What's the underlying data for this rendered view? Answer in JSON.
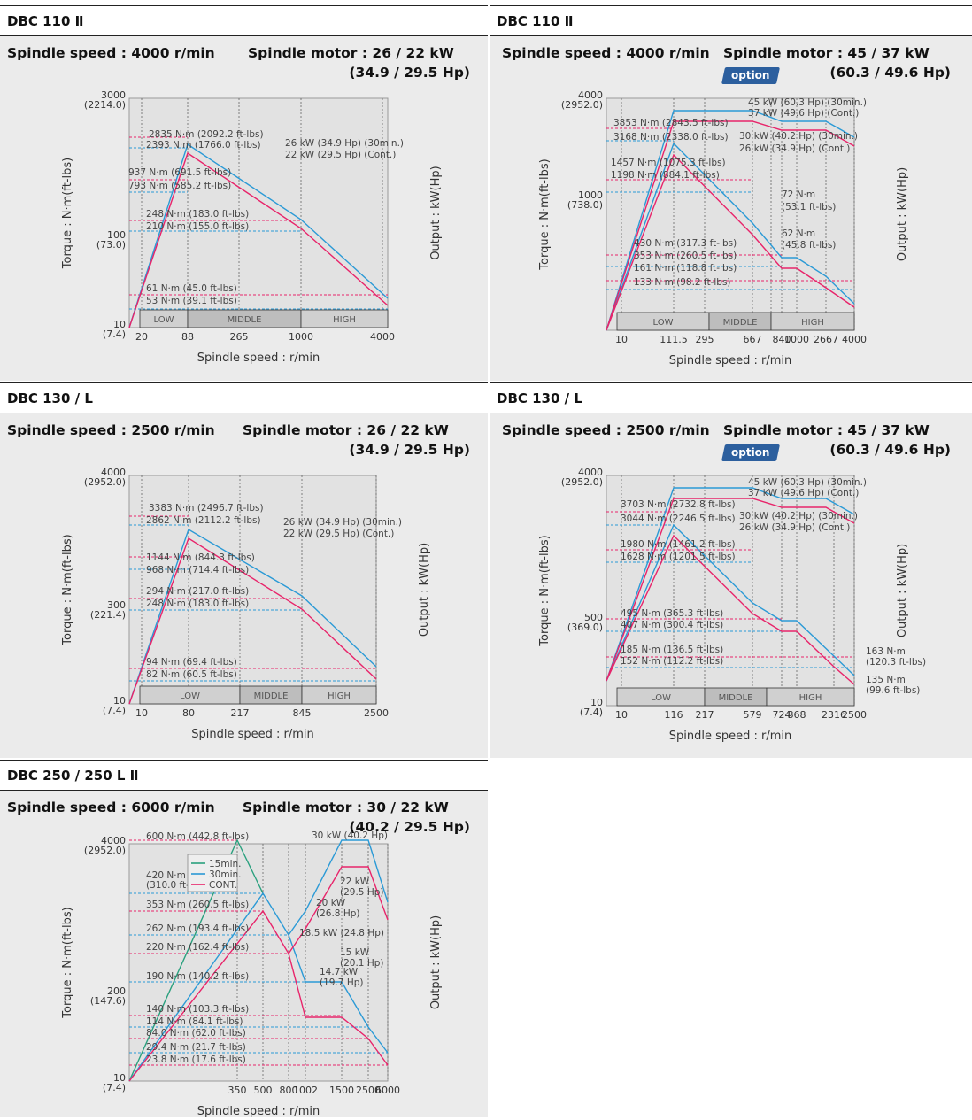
{
  "panels": [
    {
      "title": "DBC 110 Ⅱ",
      "spec_speed": "Spindle speed : 4000 r/min",
      "spec_motor": "Spindle motor : 26 / 22 kW",
      "spec_hp": "(34.9 / 29.5 Hp)",
      "option": ""
    },
    {
      "title": "DBC 110 Ⅱ",
      "spec_speed": "Spindle speed : 4000 r/min",
      "spec_motor": "Spindle motor : 45 / 37 kW",
      "spec_hp": "(60.3 / 49.6 Hp)",
      "option": "option"
    },
    {
      "title": "DBC 130 / L",
      "spec_speed": "Spindle speed : 2500 r/min",
      "spec_motor": "Spindle motor : 26 / 22 kW",
      "spec_hp": "(34.9 / 29.5 Hp)",
      "option": ""
    },
    {
      "title": "DBC 130 / L",
      "spec_speed": "Spindle speed : 2500 r/min",
      "spec_motor": "Spindle motor : 45 / 37 kW",
      "spec_hp": "(60.3 / 49.6 Hp)",
      "option": "option"
    },
    {
      "title": "DBC 250 / 250 L Ⅱ",
      "spec_speed": "Spindle speed : 6000 r/min",
      "spec_motor": "Spindle motor : 30 / 22 kW",
      "spec_hp": "(40.2 / 29.5 Hp)",
      "option": ""
    }
  ],
  "colors": {
    "cont": "#e8246a",
    "short": "#2b9ad6",
    "fifteen": "#2aa07e",
    "bg": "#ebebeb"
  },
  "chart_data": [
    {
      "type": "line",
      "xlabel": "Spindle speed : r/min",
      "ylabel": "Torque : N·m(ft-lbs)",
      "y2label": "Output : kW(Hp)",
      "x_ticks": [
        "20",
        "88",
        "265",
        "1000",
        "4000"
      ],
      "y_ticks": [
        "3000\n(2214.0)",
        "100\n(73.0)",
        "10\n(7.4)"
      ],
      "bands": [
        "LOW",
        "MIDDLE",
        "HIGH"
      ],
      "series": [
        {
          "name": "26 kW (34.9 Hp) (30min.)",
          "x": [
            10,
            88,
            1000,
            4000
          ],
          "y": [
            10,
            2835,
            248,
            61
          ]
        },
        {
          "name": "22 kW (29.5 Hp) (Cont.)",
          "x": [
            10,
            88,
            1000,
            4000
          ],
          "y": [
            10,
            2393,
            210,
            53
          ]
        }
      ],
      "annotations": [
        "2835 N·m (2092.2 ft-lbs)",
        "2393 N·m (1766.0 ft-lbs)",
        "937 N·m (691.5 ft-lbs)",
        "793 N·m (585.2 ft-lbs)",
        "248 N·m (183.0 ft-lbs)",
        "210 N·m (155.0 ft-lbs)",
        "61 N·m (45.0 ft-lbs)",
        "53 N·m (39.1 ft-lbs)",
        "26 kW (34.9 Hp) (30min.)",
        "22 kW (29.5 Hp) (Cont.)"
      ]
    },
    {
      "type": "line",
      "xlabel": "Spindle speed : r/min",
      "ylabel": "Torque : N·m(ft-lbs)",
      "y2label": "Output : kW(Hp)",
      "x_ticks": [
        "10",
        "111.5",
        "295",
        "667",
        "840",
        "1000",
        "2667",
        "4000"
      ],
      "y_ticks": [
        "4000\n(2952.0)",
        "1000\n(738.0)"
      ],
      "bands": [
        "LOW",
        "MIDDLE",
        "HIGH"
      ],
      "series": [
        {
          "name": "45 kW (60.3 Hp) (30min.)",
          "x": [
            10,
            111.5,
            295,
            667,
            840,
            2667,
            4000
          ],
          "y": [
            10,
            3853,
            1457,
            430,
            430,
            161,
            72
          ]
        },
        {
          "name": "37 kW (49.6 Hp) (Cont.)",
          "x": [
            10,
            111.5,
            295,
            667,
            840,
            2667,
            4000
          ],
          "y": [
            10,
            3168,
            1198,
            353,
            353,
            133,
            62
          ]
        }
      ],
      "annotations": [
        "3853 N·m (2843.5 ft-lbs)",
        "3168 N·m (2338.0 ft-lbs)",
        "1457 N·m (1075.3 ft-lbs)",
        "1198 N·m (884.1 ft-lbs)",
        "430 N·m (317.3 ft-lbs)",
        "353 N·m (260.5 ft-lbs)",
        "161 N·m (118.8 ft-lbs)",
        "133 N·m (98.2 ft-lbs)",
        "45 kW (60.3 Hp) (30min.)",
        "37 kW (49.6 Hp) (Cont.)",
        "30 kW (40.2 Hp) (30min.)",
        "26 kW (34.9 Hp) (Cont.)",
        "72 N·m",
        "(53.1 ft-lbs)",
        "62 N·m",
        "(45.8 ft-lbs)"
      ]
    },
    {
      "type": "line",
      "xlabel": "Spindle speed : r/min",
      "ylabel": "Torque : N·m(ft-lbs)",
      "y2label": "Output : kW(Hp)",
      "x_ticks": [
        "10",
        "80",
        "217",
        "845",
        "2500"
      ],
      "y_ticks": [
        "4000\n(2952.0)",
        "300\n(221.4)",
        "10\n(7.4)"
      ],
      "bands": [
        "LOW",
        "MIDDLE",
        "HIGH"
      ],
      "series": [
        {
          "name": "26 kW (34.9 Hp) (30min.)",
          "x": [
            10,
            80,
            845,
            2500
          ],
          "y": [
            10,
            3383,
            294,
            94
          ]
        },
        {
          "name": "22 kW (29.5 Hp) (Cont.)",
          "x": [
            10,
            80,
            845,
            2500
          ],
          "y": [
            10,
            2862,
            248,
            82
          ]
        }
      ],
      "annotations": [
        "3383 N·m (2496.7 ft-lbs)",
        "2862 N·m (2112.2 ft-lbs)",
        "1144 N·m (844.3 ft-lbs)",
        "968 N·m (714.4 ft-lbs)",
        "294 N·m (217.0 ft-lbs)",
        "248 N·m (183.0 ft-lbs)",
        "94 N·m (69.4 ft-lbs)",
        "82 N·m (60.5 ft-lbs)",
        "26 kW (34.9 Hp) (30min.)",
        "22 kW (29.5 Hp) (Cont.)"
      ]
    },
    {
      "type": "line",
      "xlabel": "Spindle speed : r/min",
      "ylabel": "Torque : N·m(ft-lbs)",
      "y2label": "Output : kW(Hp)",
      "x_ticks": [
        "10",
        "116",
        "217",
        "579",
        "724",
        "868",
        "2316",
        "2500"
      ],
      "y_ticks": [
        "4000\n(2952.0)",
        "500\n(369.0)",
        "10\n(7.4)"
      ],
      "bands": [
        "LOW",
        "MIDDLE",
        "HIGH"
      ],
      "series": [
        {
          "name": "45 kW (60.3 Hp) (30min.)",
          "x": [
            10,
            116,
            217,
            579,
            724,
            868,
            2316,
            2500
          ],
          "y": [
            10,
            3703,
            1980,
            495,
            495,
            185,
            163,
            163
          ]
        },
        {
          "name": "37 kW (49.6 Hp) (Cont.)",
          "x": [
            10,
            116,
            217,
            579,
            724,
            868,
            2316,
            2500
          ],
          "y": [
            10,
            3044,
            1628,
            407,
            407,
            152,
            135,
            135
          ]
        }
      ],
      "annotations": [
        "3703 N·m (2732.8 ft-lbs)",
        "3044 N·m (2246.5 ft-lbs)",
        "1980 N·m (1461.2 ft-lbs)",
        "1628 N·m (1201.5 ft-lbs)",
        "495 N·m (365.3 ft-lbs)",
        "407 N·m (300.4 ft-lbs)",
        "185 N·m (136.5 ft-lbs)",
        "152 N·m (112.2 ft-lbs)",
        "45 kW (60.3 Hp) (30min.)",
        "37 kW (49.6 Hp) (Cont.)",
        "30 kW (40.2 Hp) (30min.)",
        "26 kW (34.9 Hp) (Cont.)",
        "163 N·m",
        "(120.3 ft-lbs)",
        "135 N·m",
        "(99.6 ft-lbs)"
      ]
    },
    {
      "type": "line",
      "xlabel": "Spindle speed : r/min",
      "ylabel": "Torque : N·m(ft-lbs)",
      "y2label": "Output : kW(Hp)",
      "x_ticks": [
        "350",
        "500",
        "800",
        "1002",
        "1500",
        "2500",
        "6000"
      ],
      "y_ticks": [
        "4000\n(2952.0)",
        "200\n(147.6)",
        "10\n(7.4)"
      ],
      "legend": [
        "15min.",
        "30min.",
        "CONT."
      ],
      "series": [
        {
          "name": "15min.",
          "x": [
            10,
            350,
            500
          ],
          "y": [
            10,
            600,
            420
          ]
        },
        {
          "name": "30min.",
          "x": [
            10,
            500,
            800,
            1002,
            1500,
            2500,
            6000
          ],
          "y": [
            10,
            420,
            262,
            190,
            190,
            84,
            29.4
          ]
        },
        {
          "name": "CONT.",
          "x": [
            10,
            500,
            800,
            1002,
            1500,
            2500,
            6000
          ],
          "y": [
            10,
            353,
            220,
            140,
            140,
            114,
            23.8
          ]
        }
      ],
      "annotations": [
        "600 N·m (442.8 ft-lbs)",
        "420 N·m",
        "(310.0 ft-lbs)",
        "353 N·m (260.5 ft-lbs)",
        "262 N·m (193.4 ft-lbs)",
        "220 N·m (162.4 ft-lbs)",
        "190 N·m (140.2 ft-lbs)",
        "140 N·m (103.3 ft-lbs)",
        "114 N·m (84.1 ft-lbs)",
        "84.0 N·m (62.0 ft-lbs)",
        "29.4 N·m (21.7 ft-lbs)",
        "23.8 N·m (17.6 ft-lbs)",
        "30 kW (40.2 Hp)",
        "22 kW",
        "(29.5 Hp)",
        "20 kW",
        "(26.8 Hp)",
        "18.5 kW (24.8 Hp)",
        "15 kW",
        "(20.1 Hp)",
        "14.7 kW",
        "(19.7 Hp)"
      ]
    }
  ]
}
